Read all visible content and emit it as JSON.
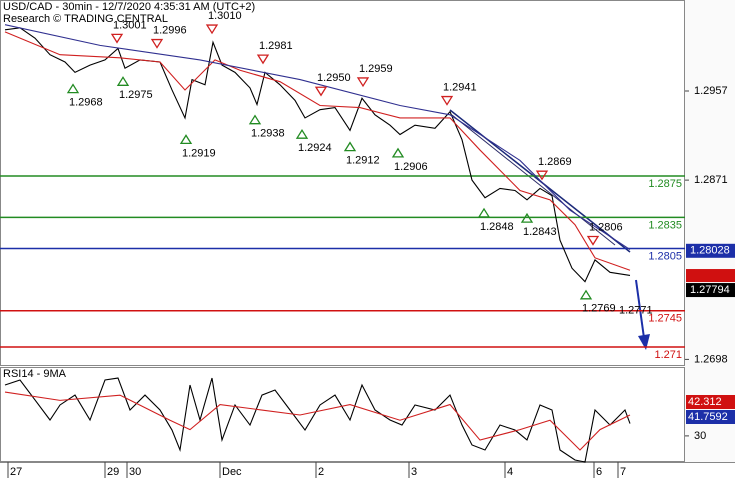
{
  "chart_data": [
    {
      "type": "line",
      "title": "USD/CAD - 30min - 12/7/2020 4:35:31 AM (UTC+2)",
      "subtitle": "Research © TRADING CENTRAL",
      "x": [
        0,
        15,
        30,
        45,
        60,
        70,
        85,
        100,
        113,
        120,
        135,
        155,
        167,
        180,
        187,
        200,
        208,
        217,
        230,
        245,
        252,
        260,
        275,
        290,
        300,
        315,
        330,
        345,
        357,
        370,
        385,
        395,
        410,
        430,
        445,
        457,
        467,
        480,
        495,
        510,
        522,
        535,
        547,
        555,
        567,
        580,
        590,
        605,
        625
      ],
      "xlim": [
        0,
        680
      ],
      "xticks": [
        {
          "value": 3,
          "label": "27"
        },
        {
          "value": 100,
          "label": "29"
        },
        {
          "value": 122,
          "label": "30"
        },
        {
          "value": 215,
          "label": "Dec"
        },
        {
          "value": 311,
          "label": "2"
        },
        {
          "value": 404,
          "label": "3"
        },
        {
          "value": 500,
          "label": "4"
        },
        {
          "value": 589,
          "label": "6"
        },
        {
          "value": 613,
          "label": "7"
        }
      ],
      "ylim": [
        1.26926,
        1.30448
      ],
      "yticks": [
        1.2957,
        1.2871,
        1.2698
      ],
      "series": [
        {
          "color": "#000000",
          "values": [
            1.3016,
            1.3018,
            1.3008,
            1.2992,
            1.2985,
            1.2975,
            1.2982,
            1.2987,
            1.2998,
            1.2979,
            1.2987,
            1.2985,
            1.2958,
            1.2931,
            1.2968,
            1.2963,
            1.3004,
            1.2982,
            1.2975,
            1.296,
            1.2944,
            1.2975,
            1.2963,
            1.2948,
            1.2931,
            1.2939,
            1.2941,
            1.2919,
            1.295,
            1.2934,
            1.2924,
            1.2915,
            1.2924,
            1.2921,
            1.2937,
            1.291,
            1.2871,
            1.2854,
            1.2863,
            1.2861,
            1.2852,
            1.2863,
            1.2856,
            1.2813,
            1.2786,
            1.2773,
            1.2794,
            1.2782,
            1.2779
          ]
        },
        {
          "color": "#d02020",
          "x": [
            0,
            55,
            115,
            155,
            180,
            210,
            235,
            275,
            315,
            355,
            395,
            445,
            475,
            515,
            545,
            570,
            590,
            625
          ],
          "values": [
            1.3014,
            1.2992,
            1.2989,
            1.2985,
            1.2958,
            1.2987,
            1.2977,
            1.2966,
            1.2943,
            1.2941,
            1.2931,
            1.2931,
            1.29,
            1.2861,
            1.2852,
            1.2828,
            1.2796,
            1.2784
          ]
        },
        {
          "color": "#303090",
          "x": [
            0,
            95,
            195,
            295,
            395,
            445,
            515,
            565,
            625
          ],
          "values": [
            1.3021,
            1.3001,
            1.2987,
            1.2968,
            1.2943,
            1.2934,
            1.289,
            1.2842,
            1.2804
          ]
        }
      ],
      "levels": [
        {
          "value": 1.2875,
          "color": "#228b22"
        },
        {
          "value": 1.2835,
          "color": "#228b22"
        },
        {
          "value": 1.2805,
          "color": "#1c2fa8"
        },
        {
          "value": 1.2745,
          "color": "#d01010"
        },
        {
          "value": 1.271,
          "color": "#d01010"
        }
      ],
      "pivots": [
        {
          "kind": "high",
          "x": 112,
          "value": 1.3001
        },
        {
          "kind": "high",
          "x": 152,
          "value": 1.2996
        },
        {
          "kind": "high",
          "x": 207,
          "value": {
            "value": 1.301,
            "label": "1.3010"
          }
        },
        {
          "kind": "high",
          "x": 258,
          "value": 1.2981
        },
        {
          "kind": "high",
          "x": 316,
          "value": {
            "value": 1.295,
            "label": "1.2950"
          }
        },
        {
          "kind": "high",
          "x": 358,
          "value": 1.2959
        },
        {
          "kind": "high",
          "x": 442,
          "value": 1.2941
        },
        {
          "kind": "high",
          "x": 537,
          "value": 1.2869
        },
        {
          "kind": "high",
          "x": 588,
          "value": 1.2806
        },
        {
          "kind": "low",
          "x": 68,
          "value": 1.2968
        },
        {
          "kind": "low",
          "x": 118,
          "value": 1.2975
        },
        {
          "kind": "low",
          "x": 181,
          "value": 1.2919
        },
        {
          "kind": "low",
          "x": 250,
          "value": 1.2938
        },
        {
          "kind": "low",
          "x": 297,
          "value": 1.2924
        },
        {
          "kind": "low",
          "x": 345,
          "value": 1.2912
        },
        {
          "kind": "low",
          "x": 393,
          "value": 1.2906
        },
        {
          "kind": "low",
          "x": 479,
          "value": 1.2848
        },
        {
          "kind": "low",
          "x": 522,
          "value": 1.2843
        },
        {
          "kind": "low",
          "x": 581,
          "value": 1.2769
        },
        {
          "kind": "label",
          "x": 622,
          "value": 1.2771
        }
      ],
      "price_boxes": [
        {
          "value": 1.28028,
          "color": "#1c2fa8"
        },
        {
          "value": 1.27794,
          "color": "#000000"
        }
      ]
    },
    {
      "type": "line",
      "title": "RSI14 - 9MA",
      "x": [
        0,
        15,
        30,
        45,
        55,
        70,
        85,
        100,
        113,
        125,
        140,
        155,
        167,
        175,
        185,
        195,
        207,
        217,
        230,
        245,
        257,
        270,
        285,
        300,
        315,
        330,
        345,
        357,
        370,
        385,
        397,
        410,
        430,
        445,
        457,
        467,
        480,
        495,
        510,
        522,
        535,
        547,
        555,
        570,
        580,
        590,
        605,
        620,
        625
      ],
      "ylim": [
        5,
        95
      ],
      "yticks": [
        30
      ],
      "series": [
        {
          "color": "#000000",
          "values": [
            78.7,
            83.5,
            64.4,
            45.2,
            59.6,
            69.1,
            45.2,
            83.5,
            85.4,
            54.8,
            69.1,
            54.8,
            35.6,
            16.5,
            78.7,
            45.2,
            85.4,
            26.1,
            59.6,
            40.4,
            69.1,
            73.9,
            54.8,
            35.6,
            59.6,
            69.1,
            45.2,
            78.7,
            54.8,
            45.2,
            40.4,
            59.6,
            54.8,
            69.1,
            40.4,
            21.3,
            16.5,
            40.4,
            35.6,
            26.1,
            59.6,
            54.8,
            16.5,
            6.9,
            5,
            54.8,
            40.4,
            54.8,
            41.8
          ]
        },
        {
          "color": "#d02020",
          "x": [
            0,
            55,
            115,
            165,
            185,
            215,
            255,
            295,
            345,
            395,
            445,
            475,
            515,
            545,
            575,
            595,
            625
          ],
          "values": [
            72,
            64,
            69,
            45,
            36,
            60,
            55,
            50,
            60,
            45,
            60,
            26,
            36,
            45,
            16.5,
            36,
            50
          ]
        }
      ],
      "boxes": [
        {
          "value": 42.312,
          "color": "#d01010"
        },
        {
          "value": 41.7592,
          "color": "#1c2fa8"
        }
      ]
    }
  ]
}
